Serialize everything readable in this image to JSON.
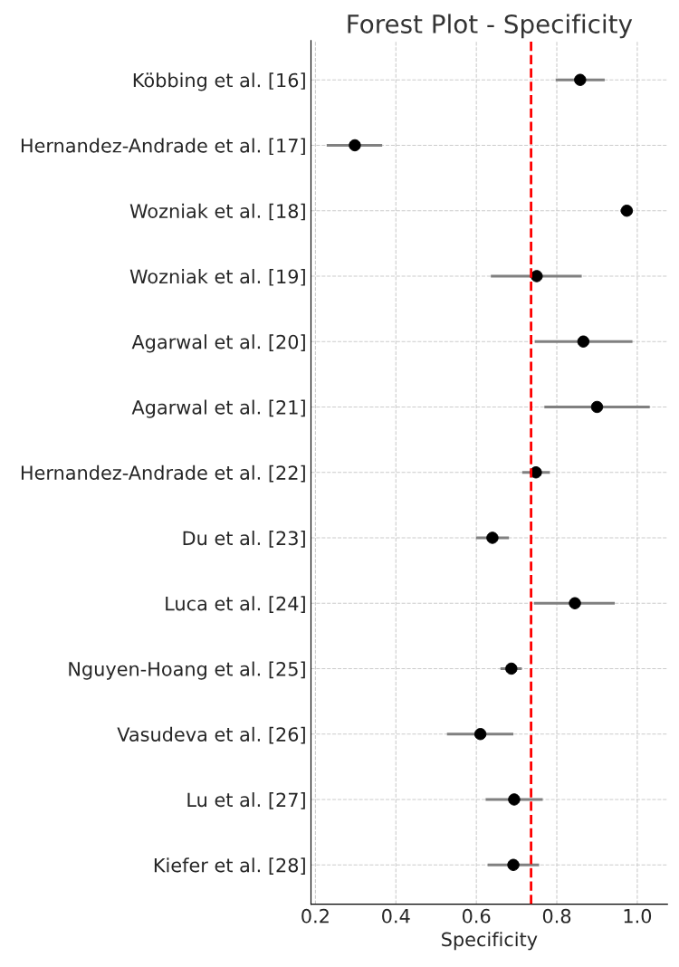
{
  "chart_data": {
    "type": "scatter",
    "orientation": "horizontal",
    "title": "Forest Plot - Specificity",
    "xlabel": "Specificity",
    "categories": [
      "Köbbing et al. [16]",
      "Hernandez-Andrade et al. [17]",
      "Wozniak et al. [18]",
      "Wozniak et al. [19]",
      "Agarwal et al. [20]",
      "Agarwal et al. [21]",
      "Hernandez-Andrade et al. [22]",
      "Du et al. [23]",
      "Luca et al. [24]",
      "Nguyen-Hoang et al. [25]",
      "Vasudeva et al. [26]",
      "Lu et al. [27]",
      "Kiefer et al. [28]"
    ],
    "series": [
      {
        "color": "#000000",
        "values": [
          0.858,
          0.298,
          0.974,
          0.75,
          0.866,
          0.9,
          0.748,
          0.64,
          0.845,
          0.687,
          0.61,
          0.694,
          0.692
        ],
        "errors": [
          [
            0.797,
            0.919
          ],
          [
            0.228,
            0.366
          ],
          [
            0.958,
            0.989
          ],
          [
            0.636,
            0.862
          ],
          [
            0.745,
            0.988
          ],
          [
            0.769,
            1.031
          ],
          [
            0.714,
            0.783
          ],
          [
            0.599,
            0.681
          ],
          [
            0.743,
            0.944
          ],
          [
            0.66,
            0.713
          ],
          [
            0.527,
            0.692
          ],
          [
            0.623,
            0.765
          ],
          [
            0.628,
            0.756
          ]
        ]
      }
    ],
    "xlim": [
      0.189,
      1.075
    ],
    "xticks": [
      {
        "value": 0.2,
        "label": "0.2"
      },
      {
        "value": 0.4,
        "label": "0.4"
      },
      {
        "value": 0.6,
        "label": "0.6"
      },
      {
        "value": 0.8,
        "label": "0.8"
      },
      {
        "value": 1.0,
        "label": "1.0"
      }
    ],
    "ref_lines": [
      {
        "axis": "x",
        "value": 0.736,
        "color": "#ff0000",
        "line_style": "dashed"
      }
    ],
    "grid": true,
    "marker": "circle"
  }
}
